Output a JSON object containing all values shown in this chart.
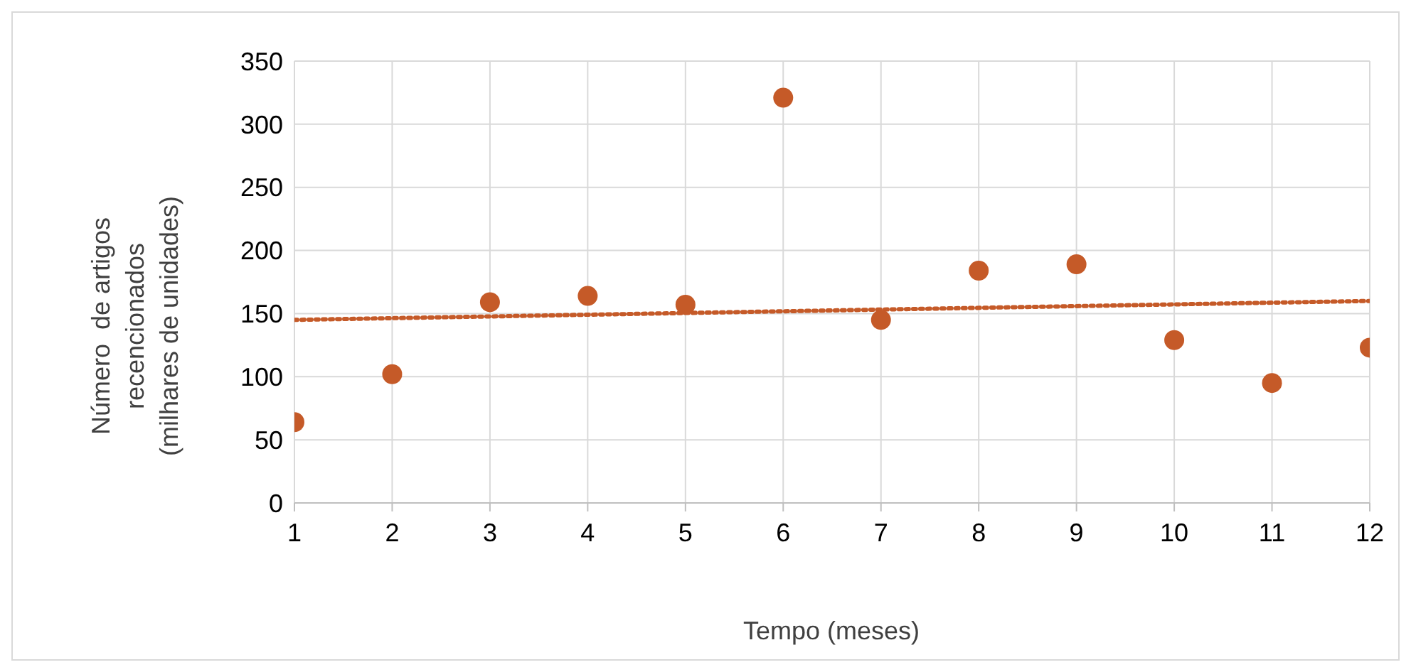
{
  "chart_data": {
    "type": "scatter",
    "xlabel": "Tempo (meses)",
    "ylabel": "Número  de artigos\nrecencionados\n(milhares de unidades)",
    "x": [
      1,
      2,
      3,
      4,
      5,
      6,
      7,
      8,
      9,
      10,
      11,
      12
    ],
    "series": [
      {
        "color": "#c55a28",
        "marker": "circle",
        "values": [
          64,
          102,
          159,
          164,
          157,
          321,
          145,
          184,
          189,
          129,
          95,
          123
        ]
      },
      {
        "type": "line",
        "color": "#c55a28",
        "line_style": "dotted",
        "x": [
          1,
          12
        ],
        "values": [
          145,
          160
        ]
      }
    ],
    "xlim": [
      1,
      12
    ],
    "xticks": [
      1,
      2,
      3,
      4,
      5,
      6,
      7,
      8,
      9,
      10,
      11,
      12
    ],
    "ylim": [
      0,
      350
    ],
    "yticks": [
      0,
      50,
      100,
      150,
      200,
      250,
      300,
      350
    ],
    "grid": true
  }
}
